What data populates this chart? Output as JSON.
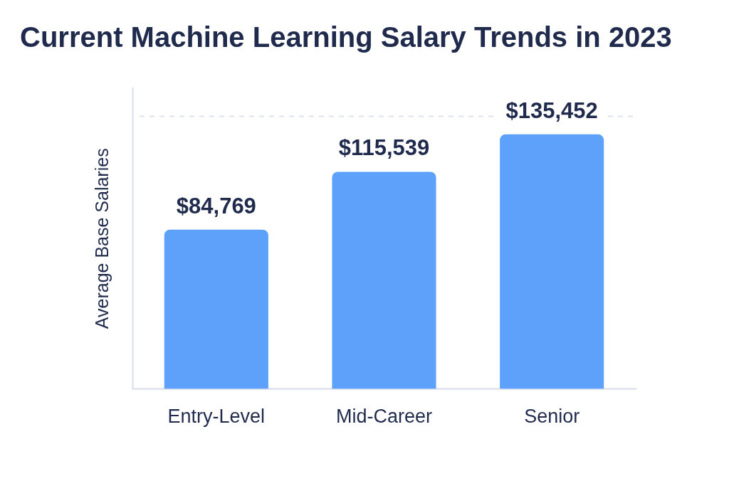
{
  "chart_data": {
    "type": "bar",
    "title": "Current Machine Learning Salary Trends in 2023",
    "ylabel": "Average Base Salaries",
    "categories": [
      "Entry-Level",
      "Mid-Career",
      "Senior"
    ],
    "values": [
      84769,
      115539,
      135452
    ],
    "color": "#5ea1fb",
    "value_labels": [
      "$84,769",
      "$115,539",
      "$135,452"
    ],
    "ref_lines": [
      {
        "axis": "y",
        "value": 145000,
        "color": "#dde3ee",
        "line_style": "dashed"
      }
    ],
    "tick_labels": "x"
  }
}
